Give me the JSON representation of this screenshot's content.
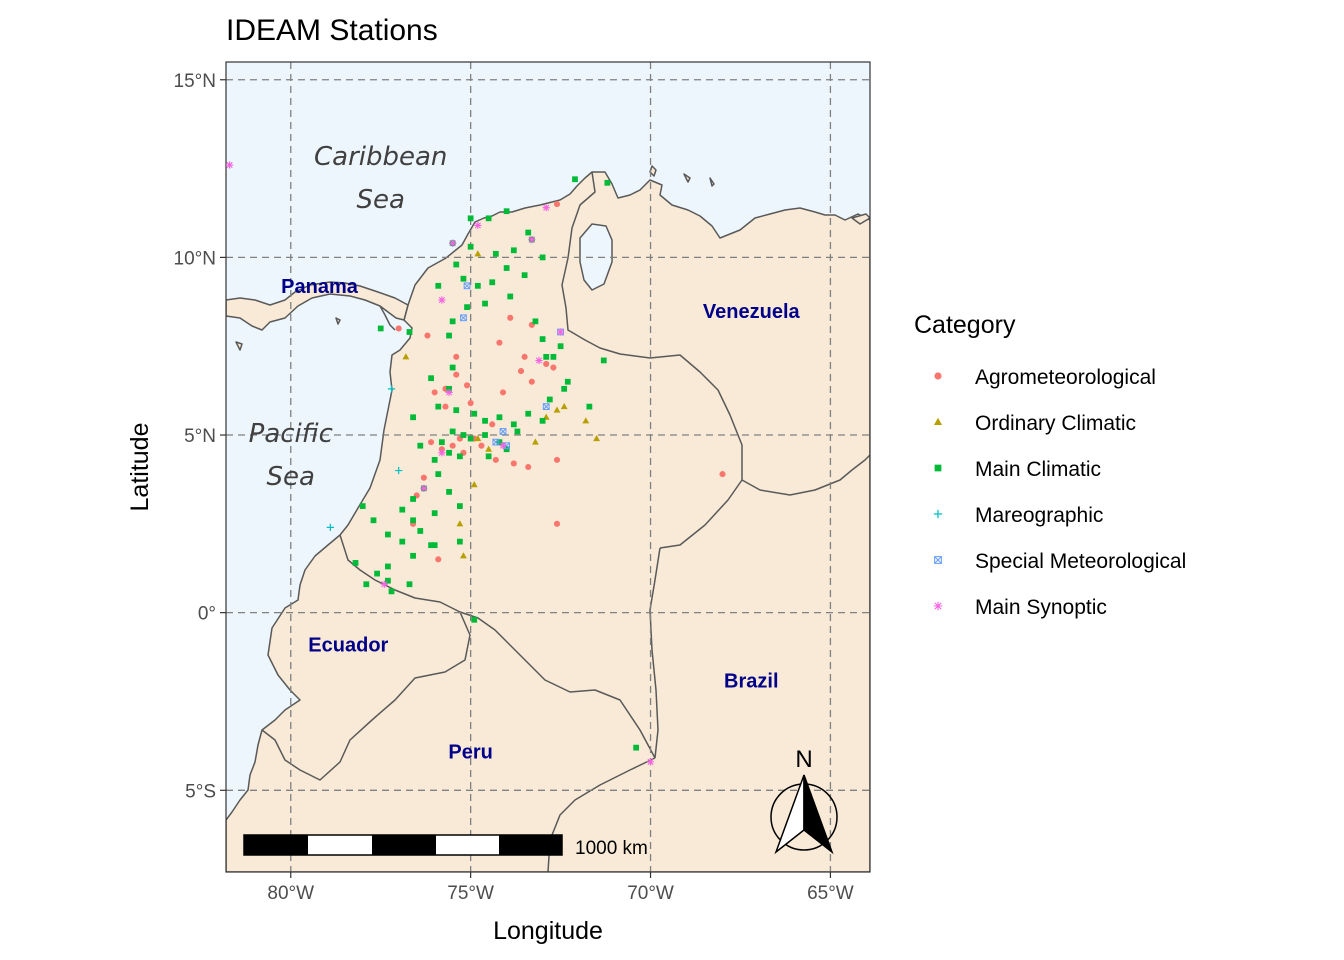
{
  "title": "IDEAM Stations",
  "axes": {
    "xlabel": "Longitude",
    "ylabel": "Latitude",
    "xlim": [
      -81.8,
      -63.9
    ],
    "ylim": [
      -7.3,
      15.5
    ],
    "xticks": [
      {
        "value": -80,
        "label": "80°W"
      },
      {
        "value": -75,
        "label": "75°W"
      },
      {
        "value": -70,
        "label": "70°W"
      },
      {
        "value": -65,
        "label": "65°W"
      }
    ],
    "yticks": [
      {
        "value": 15,
        "label": "15°N"
      },
      {
        "value": 10,
        "label": "10°N"
      },
      {
        "value": 5,
        "label": "5°N"
      },
      {
        "value": 0,
        "label": "0°"
      },
      {
        "value": -5,
        "label": "5°S"
      }
    ]
  },
  "sea_labels": [
    {
      "lines": [
        "Caribbean",
        "Sea"
      ],
      "lon": -77.5,
      "lat": 12.6
    },
    {
      "lines": [
        "Pacific",
        "Sea"
      ],
      "lon": -80.0,
      "lat": 4.8
    }
  ],
  "country_labels": [
    {
      "name": "Panama",
      "lon": -79.2,
      "lat": 9.0
    },
    {
      "name": "Venezuela",
      "lon": -67.2,
      "lat": 8.3
    },
    {
      "name": "Ecuador",
      "lon": -78.4,
      "lat": -1.1
    },
    {
      "name": "Brazil",
      "lon": -67.2,
      "lat": -2.1
    },
    {
      "name": "Peru",
      "lon": -75.0,
      "lat": -4.1
    }
  ],
  "legend": {
    "title": "Category",
    "items": [
      {
        "label": "Agrometeorological",
        "shape": "circle",
        "color": "#F8766D"
      },
      {
        "label": "Ordinary Climatic",
        "shape": "triangle",
        "color": "#B79F00"
      },
      {
        "label": "Main Climatic",
        "shape": "square",
        "color": "#00BA38"
      },
      {
        "label": "Mareographic",
        "shape": "plus",
        "color": "#00BFC4"
      },
      {
        "label": "Special Meteorological",
        "shape": "boxx",
        "color": "#619CFF"
      },
      {
        "label": "Main Synoptic",
        "shape": "asterisk",
        "color": "#F564E3"
      }
    ]
  },
  "scale_bar": {
    "label": "1000 km"
  },
  "north_arrow": {
    "label": "N"
  },
  "colors": {
    "sea": "#eef6fd",
    "land": "#f8ead6",
    "border": "#595959",
    "grid": "#808080"
  },
  "chart_data": {
    "type": "scatter",
    "title": "IDEAM Stations",
    "xlabel": "Longitude",
    "ylabel": "Latitude",
    "xlim": [
      -81.8,
      -63.9
    ],
    "ylim": [
      -7.3,
      15.5
    ],
    "grid": true,
    "legend_position": "right",
    "series": [
      {
        "name": "Agrometeorological",
        "points": [
          [
            -72.6,
            11.5
          ],
          [
            -73.9,
            8.3
          ],
          [
            -73.3,
            8.1
          ],
          [
            -74.2,
            7.6
          ],
          [
            -72.9,
            7.0
          ],
          [
            -73.3,
            6.5
          ],
          [
            -73.6,
            6.8
          ],
          [
            -72.7,
            6.9
          ],
          [
            -74.1,
            6.2
          ],
          [
            -75.4,
            7.2
          ],
          [
            -75.4,
            6.7
          ],
          [
            -75.1,
            6.4
          ],
          [
            -75.7,
            6.3
          ],
          [
            -76.0,
            6.2
          ],
          [
            -75.0,
            5.9
          ],
          [
            -75.7,
            5.8
          ],
          [
            -74.4,
            5.3
          ],
          [
            -75.5,
            4.7
          ],
          [
            -75.8,
            4.6
          ],
          [
            -75.2,
            4.5
          ],
          [
            -74.7,
            4.7
          ],
          [
            -74.3,
            4.3
          ],
          [
            -73.8,
            4.2
          ],
          [
            -73.4,
            4.1
          ],
          [
            -72.6,
            4.3
          ],
          [
            -76.3,
            3.8
          ],
          [
            -76.5,
            3.3
          ],
          [
            -76.6,
            2.5
          ],
          [
            -75.9,
            1.5
          ],
          [
            -72.6,
            2.5
          ],
          [
            -68.0,
            3.9
          ],
          [
            -77.0,
            8.0
          ],
          [
            -76.2,
            7.8
          ],
          [
            -73.5,
            7.2
          ],
          [
            -74.9,
            4.9
          ],
          [
            -75.3,
            4.9
          ],
          [
            -76.1,
            4.8
          ]
        ]
      },
      {
        "name": "Ordinary Climatic",
        "points": [
          [
            -74.8,
            10.1
          ],
          [
            -76.8,
            7.2
          ],
          [
            -72.6,
            5.7
          ],
          [
            -72.4,
            5.8
          ],
          [
            -71.8,
            5.4
          ],
          [
            -71.5,
            4.9
          ],
          [
            -72.9,
            5.5
          ],
          [
            -74.8,
            4.9
          ],
          [
            -74.5,
            4.6
          ],
          [
            -74.9,
            3.6
          ],
          [
            -75.3,
            2.5
          ],
          [
            -75.2,
            1.6
          ],
          [
            -73.2,
            4.8
          ]
        ]
      },
      {
        "name": "Main Climatic",
        "points": [
          [
            -72.1,
            12.2
          ],
          [
            -71.2,
            12.1
          ],
          [
            -73.4,
            10.7
          ],
          [
            -74.0,
            11.3
          ],
          [
            -74.5,
            11.1
          ],
          [
            -75.0,
            11.1
          ],
          [
            -75.5,
            10.4
          ],
          [
            -75.0,
            10.3
          ],
          [
            -74.3,
            10.1
          ],
          [
            -73.0,
            10.0
          ],
          [
            -73.3,
            10.5
          ],
          [
            -73.8,
            10.2
          ],
          [
            -74.0,
            9.7
          ],
          [
            -73.5,
            9.5
          ],
          [
            -75.4,
            9.8
          ],
          [
            -75.2,
            9.4
          ],
          [
            -75.9,
            9.2
          ],
          [
            -74.8,
            9.2
          ],
          [
            -74.4,
            9.3
          ],
          [
            -73.9,
            8.9
          ],
          [
            -74.6,
            8.7
          ],
          [
            -75.1,
            8.6
          ],
          [
            -75.5,
            8.2
          ],
          [
            -73.2,
            8.2
          ],
          [
            -73.0,
            7.7
          ],
          [
            -72.5,
            7.5
          ],
          [
            -72.7,
            7.2
          ],
          [
            -71.3,
            7.1
          ],
          [
            -72.9,
            7.2
          ],
          [
            -77.5,
            8.0
          ],
          [
            -76.7,
            7.9
          ],
          [
            -75.6,
            7.8
          ],
          [
            -76.1,
            6.6
          ],
          [
            -75.5,
            6.9
          ],
          [
            -75.6,
            6.3
          ],
          [
            -75.9,
            5.8
          ],
          [
            -75.4,
            5.7
          ],
          [
            -74.9,
            5.6
          ],
          [
            -74.6,
            5.4
          ],
          [
            -74.2,
            5.5
          ],
          [
            -73.8,
            5.3
          ],
          [
            -73.4,
            5.6
          ],
          [
            -72.3,
            6.5
          ],
          [
            -72.4,
            6.3
          ],
          [
            -72.8,
            6.0
          ],
          [
            -71.7,
            5.8
          ],
          [
            -73.0,
            5.4
          ],
          [
            -76.6,
            5.5
          ],
          [
            -75.2,
            5.0
          ],
          [
            -75.5,
            5.1
          ],
          [
            -75.0,
            4.9
          ],
          [
            -74.6,
            5.0
          ],
          [
            -74.0,
            4.6
          ],
          [
            -74.2,
            4.8
          ],
          [
            -74.5,
            4.4
          ],
          [
            -75.6,
            4.5
          ],
          [
            -76.0,
            4.3
          ],
          [
            -75.3,
            4.4
          ],
          [
            -75.9,
            3.9
          ],
          [
            -76.3,
            3.5
          ],
          [
            -76.6,
            3.2
          ],
          [
            -75.6,
            3.4
          ],
          [
            -75.3,
            3.0
          ],
          [
            -78.0,
            3.0
          ],
          [
            -77.7,
            2.6
          ],
          [
            -76.9,
            2.9
          ],
          [
            -76.6,
            2.6
          ],
          [
            -76.0,
            2.8
          ],
          [
            -75.3,
            2.0
          ],
          [
            -76.4,
            2.3
          ],
          [
            -76.9,
            2.0
          ],
          [
            -77.3,
            2.2
          ],
          [
            -76.1,
            1.9
          ],
          [
            -76.6,
            1.6
          ],
          [
            -77.3,
            1.3
          ],
          [
            -77.6,
            1.1
          ],
          [
            -78.2,
            1.4
          ],
          [
            -77.9,
            0.8
          ],
          [
            -77.3,
            0.9
          ],
          [
            -76.7,
            0.8
          ],
          [
            -74.9,
            -0.2
          ],
          [
            -77.2,
            0.6
          ],
          [
            -70.4,
            -3.8
          ],
          [
            -75.8,
            4.8
          ],
          [
            -76.4,
            4.7
          ],
          [
            -76.0,
            1.9
          ],
          [
            -73.7,
            5.1
          ]
        ]
      },
      {
        "name": "Mareographic",
        "points": [
          [
            -77.2,
            6.3
          ],
          [
            -77.0,
            4.0
          ],
          [
            -78.9,
            2.4
          ],
          [
            -75.5,
            10.4
          ]
        ]
      },
      {
        "name": "Special Meteorological",
        "points": [
          [
            -75.1,
            9.2
          ],
          [
            -75.2,
            8.3
          ],
          [
            -74.1,
            5.1
          ],
          [
            -72.9,
            5.8
          ],
          [
            -72.5,
            7.9
          ],
          [
            -74.3,
            4.8
          ],
          [
            -74.0,
            4.7
          ]
        ]
      },
      {
        "name": "Main Synoptic",
        "points": [
          [
            -81.7,
            12.6
          ],
          [
            -72.9,
            11.4
          ],
          [
            -74.8,
            10.9
          ],
          [
            -75.5,
            10.4
          ],
          [
            -73.3,
            10.5
          ],
          [
            -75.8,
            8.8
          ],
          [
            -72.5,
            7.9
          ],
          [
            -73.1,
            7.1
          ],
          [
            -75.6,
            6.2
          ],
          [
            -75.8,
            4.5
          ],
          [
            -76.3,
            3.5
          ],
          [
            -74.1,
            4.7
          ],
          [
            -77.4,
            0.8
          ],
          [
            -70.0,
            -4.2
          ]
        ]
      }
    ]
  }
}
